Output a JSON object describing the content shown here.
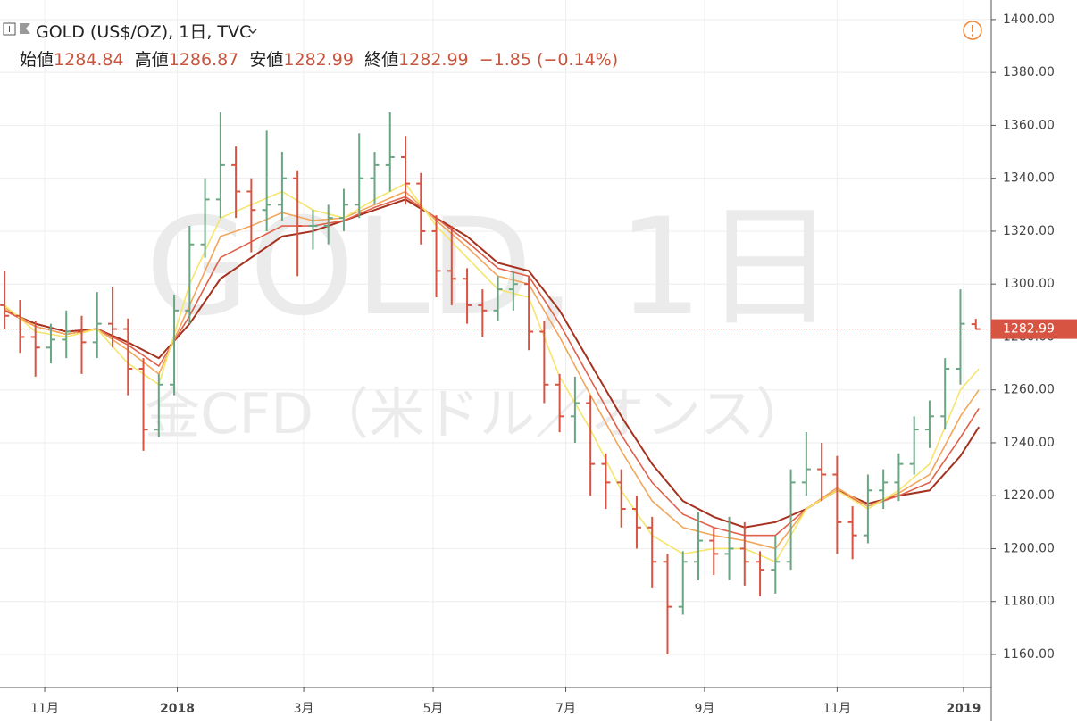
{
  "chart_data": {
    "type": "ohlc",
    "title": "GOLD (US$/OZ), 1日, TVC",
    "ohlc_labels": [
      "始値",
      "高値",
      "安値",
      "終値"
    ],
    "change_label": "−1.85 (−0.14%)",
    "watermark": [
      "GOLD, 1日",
      "金CFD（米ドル／オンス）"
    ],
    "x": [
      0,
      5,
      10,
      15,
      20,
      25,
      30,
      35,
      40,
      45,
      50,
      55,
      60,
      65,
      70,
      75,
      80,
      85,
      90,
      95,
      100,
      105,
      110,
      115,
      120,
      125,
      130,
      135,
      140,
      145,
      150,
      155,
      160,
      165,
      170,
      175,
      180,
      185,
      190,
      195,
      200,
      205,
      210,
      215,
      220,
      225,
      230,
      235,
      240,
      245,
      250,
      255,
      260,
      265,
      270,
      275,
      280,
      285,
      290,
      295,
      300,
      305,
      310,
      315
    ],
    "open": [
      1292,
      1288,
      1280,
      1276,
      1279,
      1282,
      1278,
      1285,
      1283,
      1268,
      1245,
      1262,
      1290,
      1315,
      1332,
      1345,
      1335,
      1328,
      1330,
      1340,
      1322,
      1322,
      1325,
      1330,
      1340,
      1345,
      1348,
      1338,
      1320,
      1305,
      1302,
      1292,
      1290,
      1298,
      1300,
      1282,
      1262,
      1250,
      1255,
      1232,
      1225,
      1215,
      1208,
      1195,
      1178,
      1195,
      1203,
      1198,
      1200,
      1195,
      1192,
      1195,
      1225,
      1230,
      1228,
      1210,
      1205,
      1222,
      1225,
      1232,
      1245,
      1250,
      1268,
      1284.84
    ],
    "high": [
      1305,
      1294,
      1286,
      1285,
      1290,
      1288,
      1297,
      1299,
      1287,
      1272,
      1266,
      1296,
      1322,
      1340,
      1365,
      1352,
      1340,
      1358,
      1350,
      1343,
      1328,
      1330,
      1336,
      1357,
      1350,
      1365,
      1356,
      1342,
      1326,
      1322,
      1306,
      1298,
      1303,
      1305,
      1303,
      1286,
      1266,
      1265,
      1258,
      1236,
      1230,
      1220,
      1212,
      1198,
      1199,
      1214,
      1208,
      1212,
      1210,
      1199,
      1205,
      1230,
      1244,
      1240,
      1235,
      1216,
      1228,
      1230,
      1236,
      1250,
      1256,
      1272,
      1298,
      1286.87
    ],
    "low": [
      1283,
      1274,
      1265,
      1270,
      1272,
      1266,
      1272,
      1276,
      1258,
      1237,
      1242,
      1258,
      1285,
      1310,
      1325,
      1325,
      1312,
      1320,
      1324,
      1303,
      1313,
      1315,
      1320,
      1325,
      1330,
      1335,
      1330,
      1315,
      1295,
      1292,
      1285,
      1280,
      1286,
      1290,
      1275,
      1255,
      1244,
      1240,
      1220,
      1215,
      1208,
      1200,
      1185,
      1160,
      1175,
      1188,
      1190,
      1188,
      1186,
      1182,
      1183,
      1192,
      1220,
      1218,
      1198,
      1196,
      1202,
      1215,
      1218,
      1228,
      1238,
      1245,
      1262,
      1282.99
    ],
    "close": [
      1288,
      1280,
      1276,
      1279,
      1282,
      1278,
      1285,
      1283,
      1268,
      1245,
      1262,
      1290,
      1315,
      1332,
      1345,
      1335,
      1328,
      1330,
      1340,
      1322,
      1322,
      1325,
      1330,
      1340,
      1345,
      1348,
      1338,
      1320,
      1305,
      1302,
      1292,
      1290,
      1298,
      1300,
      1282,
      1262,
      1250,
      1255,
      1232,
      1225,
      1215,
      1208,
      1195,
      1178,
      1195,
      1203,
      1198,
      1200,
      1195,
      1192,
      1195,
      1225,
      1230,
      1228,
      1210,
      1205,
      1222,
      1225,
      1232,
      1245,
      1250,
      1268,
      1285,
      1282.99
    ],
    "up_color": "#6ba583",
    "down_color": "#d75442",
    "lines": {
      "x": [
        0,
        10,
        20,
        30,
        40,
        50,
        60,
        70,
        80,
        90,
        100,
        110,
        120,
        130,
        140,
        150,
        160,
        170,
        180,
        190,
        200,
        210,
        220,
        230,
        240,
        250,
        260,
        270,
        280,
        290,
        300,
        310,
        316
      ],
      "series": [
        {
          "color": "#a5321f",
          "values": [
            1290,
            1285,
            1282,
            1283,
            1278,
            1272,
            1285,
            1302,
            1310,
            1318,
            1320,
            1324,
            1328,
            1332,
            1325,
            1318,
            1308,
            1305,
            1290,
            1270,
            1250,
            1232,
            1218,
            1212,
            1208,
            1210,
            1215,
            1222,
            1217,
            1220,
            1222,
            1235,
            1246
          ]
        },
        {
          "color": "#e0604a",
          "values": [
            1290,
            1284,
            1281,
            1283,
            1277,
            1269,
            1288,
            1310,
            1316,
            1322,
            1322,
            1324,
            1329,
            1333,
            1325,
            1316,
            1306,
            1303,
            1285,
            1264,
            1243,
            1225,
            1213,
            1208,
            1205,
            1205,
            1215,
            1222,
            1216,
            1220,
            1225,
            1242,
            1253
          ]
        },
        {
          "color": "#f2a65a",
          "values": [
            1291,
            1284,
            1281,
            1283,
            1275,
            1266,
            1292,
            1318,
            1322,
            1327,
            1324,
            1325,
            1330,
            1335,
            1324,
            1314,
            1303,
            1300,
            1280,
            1258,
            1237,
            1218,
            1208,
            1205,
            1203,
            1200,
            1215,
            1223,
            1216,
            1221,
            1228,
            1250,
            1260
          ]
        },
        {
          "color": "#f5e56b",
          "values": [
            1292,
            1282,
            1280,
            1283,
            1270,
            1262,
            1300,
            1325,
            1330,
            1335,
            1328,
            1325,
            1332,
            1338,
            1322,
            1310,
            1298,
            1295,
            1265,
            1245,
            1222,
            1205,
            1198,
            1200,
            1200,
            1195,
            1215,
            1222,
            1215,
            1222,
            1232,
            1260,
            1268
          ]
        }
      ]
    },
    "xlim": [
      -1.5,
      320
    ],
    "ylim": [
      1147.5,
      1407.4
    ],
    "xticks": [
      {
        "value": 13,
        "label": "11月"
      },
      {
        "value": 56,
        "label": "2018"
      },
      {
        "value": 97,
        "label": "3月"
      },
      {
        "value": 139,
        "label": "5月"
      },
      {
        "value": 182,
        "label": "7月"
      },
      {
        "value": 227,
        "label": "9月"
      },
      {
        "value": 270,
        "label": "11月"
      },
      {
        "value": 311,
        "label": "2019"
      }
    ],
    "yticks": [
      {
        "value": 1160,
        "label": "1160.00"
      },
      {
        "value": 1180,
        "label": "1180.00"
      },
      {
        "value": 1200,
        "label": "1200.00"
      },
      {
        "value": 1220,
        "label": "1220.00"
      },
      {
        "value": 1240,
        "label": "1240.00"
      },
      {
        "value": 1260,
        "label": "1260.00"
      },
      {
        "value": 1280,
        "label": "1280.00"
      },
      {
        "value": 1300,
        "label": "1300.00"
      },
      {
        "value": 1320,
        "label": "1320.00"
      },
      {
        "value": 1340,
        "label": "1340.00"
      },
      {
        "value": 1360,
        "label": "1360.00"
      },
      {
        "value": 1380,
        "label": "1380.00"
      },
      {
        "value": 1400,
        "label": "1400.00"
      }
    ],
    "grid": true
  }
}
